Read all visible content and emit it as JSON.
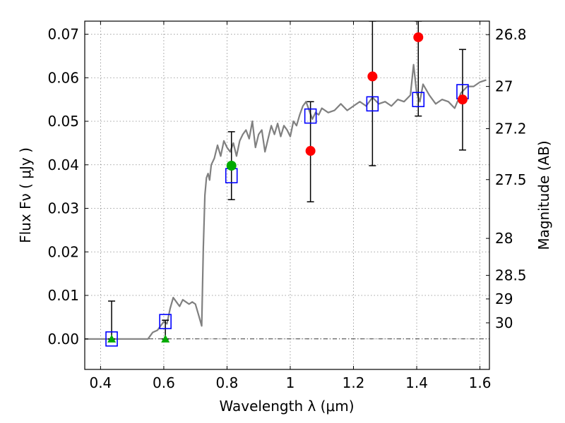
{
  "chart_data": {
    "type": "scatter",
    "title": "",
    "xlabel": "Wavelength  λ (μm)",
    "ylabel": "Flux  Fν  ( μJy )",
    "ylabel_right": "Magnitude (AB)",
    "xlim": [
      0.35,
      1.63
    ],
    "ylim": [
      -0.007,
      0.073
    ],
    "xticks": [
      0.4,
      0.6,
      0.8,
      1.0,
      1.2,
      1.4,
      1.6
    ],
    "xtick_labels": [
      "0.4",
      "0.6",
      "0.8",
      "1",
      "1.2",
      "1.4",
      "1.6"
    ],
    "yticks": [
      0.0,
      0.01,
      0.02,
      0.03,
      0.04,
      0.05,
      0.06,
      0.07
    ],
    "ytick_labels": [
      "0.00",
      "0.01",
      "0.02",
      "0.03",
      "0.04",
      "0.05",
      "0.06",
      "0.07"
    ],
    "right_ticks": [
      {
        "label": "26.8",
        "flux": 0.0699
      },
      {
        "label": "27",
        "flux": 0.058
      },
      {
        "label": "27.2",
        "flux": 0.0483
      },
      {
        "label": "27.5",
        "flux": 0.0366
      },
      {
        "label": "28",
        "flux": 0.0231
      },
      {
        "label": "28.5",
        "flux": 0.0146
      },
      {
        "label": "29",
        "flux": 0.0092
      },
      {
        "label": "30",
        "flux": 0.0037
      }
    ],
    "grid": true,
    "zero_line": 0.0,
    "series": [
      {
        "kind": "line",
        "color": "#808080",
        "x": [
          0.35,
          0.55,
          0.565,
          0.58,
          0.59,
          0.6,
          0.61,
          0.62,
          0.63,
          0.64,
          0.65,
          0.66,
          0.67,
          0.68,
          0.69,
          0.7,
          0.71,
          0.72,
          0.725,
          0.73,
          0.735,
          0.74,
          0.745,
          0.75,
          0.76,
          0.77,
          0.78,
          0.79,
          0.8,
          0.81,
          0.82,
          0.83,
          0.84,
          0.85,
          0.86,
          0.87,
          0.88,
          0.89,
          0.9,
          0.91,
          0.92,
          0.93,
          0.94,
          0.95,
          0.96,
          0.97,
          0.98,
          0.99,
          1.0,
          1.01,
          1.02,
          1.03,
          1.04,
          1.05,
          1.06,
          1.07,
          1.08,
          1.09,
          1.1,
          1.12,
          1.14,
          1.16,
          1.18,
          1.2,
          1.22,
          1.24,
          1.26,
          1.28,
          1.3,
          1.32,
          1.34,
          1.36,
          1.38,
          1.39,
          1.4,
          1.41,
          1.42,
          1.44,
          1.46,
          1.48,
          1.5,
          1.52,
          1.54,
          1.56,
          1.58,
          1.6,
          1.62
        ],
        "y": [
          0.0,
          0.0,
          0.0015,
          0.002,
          0.003,
          0.004,
          0.0035,
          0.007,
          0.0095,
          0.0085,
          0.0075,
          0.009,
          0.0085,
          0.008,
          0.0085,
          0.008,
          0.0055,
          0.003,
          0.021,
          0.033,
          0.037,
          0.038,
          0.0365,
          0.04,
          0.0415,
          0.0445,
          0.042,
          0.0455,
          0.044,
          0.043,
          0.045,
          0.042,
          0.0455,
          0.047,
          0.048,
          0.046,
          0.05,
          0.044,
          0.047,
          0.048,
          0.043,
          0.046,
          0.049,
          0.047,
          0.0495,
          0.0465,
          0.049,
          0.048,
          0.0465,
          0.05,
          0.049,
          0.0515,
          0.0535,
          0.0545,
          0.0525,
          0.0505,
          0.052,
          0.0515,
          0.053,
          0.052,
          0.0525,
          0.054,
          0.0525,
          0.0535,
          0.0545,
          0.0535,
          0.0555,
          0.054,
          0.0545,
          0.0535,
          0.055,
          0.0545,
          0.056,
          0.063,
          0.0565,
          0.0545,
          0.0585,
          0.056,
          0.054,
          0.055,
          0.0545,
          0.053,
          0.0565,
          0.058,
          0.058,
          0.059,
          0.0595
        ]
      },
      {
        "kind": "errorbar",
        "color": "#000000",
        "points": [
          {
            "x": 0.435,
            "lo": 0.0,
            "hi": 0.0087
          },
          {
            "x": 0.605,
            "lo": 0.0,
            "hi": 0.0043
          },
          {
            "x": 0.814,
            "lo": 0.032,
            "hi": 0.0476
          },
          {
            "x": 1.064,
            "lo": 0.0315,
            "hi": 0.0545
          },
          {
            "x": 1.26,
            "lo": 0.0398,
            "hi": 0.073
          },
          {
            "x": 1.405,
            "lo": 0.0512,
            "hi": 0.073
          },
          {
            "x": 1.545,
            "lo": 0.0434,
            "hi": 0.0665
          }
        ]
      },
      {
        "kind": "square",
        "color": "#0000ff",
        "x": [
          0.435,
          0.605,
          0.814,
          1.064,
          1.26,
          1.405,
          1.545
        ],
        "y": [
          0.0,
          0.004,
          0.0375,
          0.0512,
          0.054,
          0.055,
          0.0568
        ]
      },
      {
        "kind": "circle",
        "color": "#ff0000",
        "x": [
          1.064,
          1.26,
          1.405,
          1.545
        ],
        "y": [
          0.0432,
          0.0603,
          0.0693,
          0.055
        ]
      },
      {
        "kind": "circle",
        "color": "#00aa00",
        "x": [
          0.814
        ],
        "y": [
          0.0398
        ]
      },
      {
        "kind": "triangle",
        "color": "#00aa00",
        "x": [
          0.435,
          0.605
        ],
        "y": [
          0.0,
          0.0
        ]
      }
    ]
  }
}
